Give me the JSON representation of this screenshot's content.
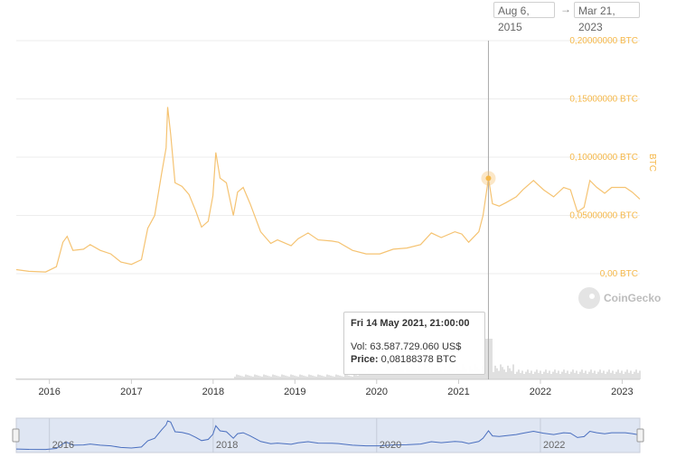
{
  "range": {
    "from": "Aug 6, 2015",
    "arrow": "→",
    "to": "Mar 21, 2023"
  },
  "tooltip": {
    "date": "Fri 14 May 2021, 21:00:00",
    "vol_label": "Vol:",
    "vol_value": "63.587.729.060 US$",
    "price_label": "Price:",
    "price_value": "0,08188378 BTC"
  },
  "watermark": "CoinGecko",
  "colors": {
    "price_line": "#f5c372",
    "volume": "#d6d6d6",
    "navigator_line": "#4a6fbf",
    "navigator_bg": "#dfe6f3",
    "axis_text": "#f5b84a"
  },
  "chart_data": {
    "type": "line",
    "y_axis_label": "BTC",
    "y_ticks": [
      "0,00 BTC",
      "0,05000000 BTC",
      "0,10000000 BTC",
      "0,15000000 BTC",
      "0,20000000 BTC"
    ],
    "ylim": [
      0,
      0.2
    ],
    "xlim": [
      "2015-08-06",
      "2023-03-21"
    ],
    "x_ticks": [
      "2016",
      "2017",
      "2018",
      "2019",
      "2020",
      "2021",
      "2022",
      "2023"
    ],
    "navigator_ticks": [
      "2016",
      "2018",
      "2020",
      "2022"
    ],
    "series": [
      {
        "points": [
          [
            "2015-08-06",
            0.0035
          ],
          [
            "2015-10-01",
            0.002
          ],
          [
            "2015-12-15",
            0.0015
          ],
          [
            "2016-02-01",
            0.006
          ],
          [
            "2016-03-01",
            0.027
          ],
          [
            "2016-03-20",
            0.032
          ],
          [
            "2016-04-15",
            0.02
          ],
          [
            "2016-06-01",
            0.021
          ],
          [
            "2016-07-01",
            0.025
          ],
          [
            "2016-08-15",
            0.02
          ],
          [
            "2016-10-01",
            0.017
          ],
          [
            "2016-11-15",
            0.01
          ],
          [
            "2017-01-01",
            0.008
          ],
          [
            "2017-02-15",
            0.012
          ],
          [
            "2017-03-15",
            0.039
          ],
          [
            "2017-04-15",
            0.05
          ],
          [
            "2017-05-15",
            0.085
          ],
          [
            "2017-06-05",
            0.108
          ],
          [
            "2017-06-12",
            0.143
          ],
          [
            "2017-06-25",
            0.12
          ],
          [
            "2017-07-15",
            0.078
          ],
          [
            "2017-08-15",
            0.075
          ],
          [
            "2017-09-15",
            0.068
          ],
          [
            "2017-10-15",
            0.054
          ],
          [
            "2017-11-10",
            0.04
          ],
          [
            "2017-12-10",
            0.045
          ],
          [
            "2017-12-31",
            0.067
          ],
          [
            "2018-01-13",
            0.104
          ],
          [
            "2018-02-01",
            0.082
          ],
          [
            "2018-03-01",
            0.078
          ],
          [
            "2018-04-01",
            0.05
          ],
          [
            "2018-04-20",
            0.07
          ],
          [
            "2018-05-15",
            0.074
          ],
          [
            "2018-06-15",
            0.06
          ],
          [
            "2018-08-01",
            0.036
          ],
          [
            "2018-09-15",
            0.026
          ],
          [
            "2018-10-15",
            0.029
          ],
          [
            "2018-12-15",
            0.024
          ],
          [
            "2019-01-15",
            0.03
          ],
          [
            "2019-03-01",
            0.035
          ],
          [
            "2019-04-15",
            0.029
          ],
          [
            "2019-06-15",
            0.028
          ],
          [
            "2019-07-15",
            0.027
          ],
          [
            "2019-09-15",
            0.02
          ],
          [
            "2019-11-15",
            0.017
          ],
          [
            "2020-01-15",
            0.017
          ],
          [
            "2020-03-15",
            0.021
          ],
          [
            "2020-05-15",
            0.022
          ],
          [
            "2020-07-15",
            0.025
          ],
          [
            "2020-09-01",
            0.035
          ],
          [
            "2020-10-15",
            0.031
          ],
          [
            "2020-12-15",
            0.036
          ],
          [
            "2021-01-15",
            0.034
          ],
          [
            "2021-02-15",
            0.027
          ],
          [
            "2021-04-01",
            0.036
          ],
          [
            "2021-04-20",
            0.05
          ],
          [
            "2021-05-14",
            0.0819
          ],
          [
            "2021-06-01",
            0.06
          ],
          [
            "2021-07-01",
            0.058
          ],
          [
            "2021-08-01",
            0.061
          ],
          [
            "2021-09-15",
            0.066
          ],
          [
            "2021-10-15",
            0.072
          ],
          [
            "2021-12-01",
            0.08
          ],
          [
            "2022-01-15",
            0.072
          ],
          [
            "2022-03-01",
            0.066
          ],
          [
            "2022-04-15",
            0.074
          ],
          [
            "2022-05-15",
            0.072
          ],
          [
            "2022-06-15",
            0.053
          ],
          [
            "2022-07-15",
            0.057
          ],
          [
            "2022-08-10",
            0.08
          ],
          [
            "2022-09-10",
            0.074
          ],
          [
            "2022-10-15",
            0.069
          ],
          [
            "2022-11-15",
            0.074
          ],
          [
            "2023-01-15",
            0.074
          ],
          [
            "2023-02-15",
            0.07
          ],
          [
            "2023-03-21",
            0.064
          ]
        ]
      }
    ],
    "highlight": {
      "date": "2021-05-14",
      "value": 0.08188378
    },
    "grid": true
  }
}
